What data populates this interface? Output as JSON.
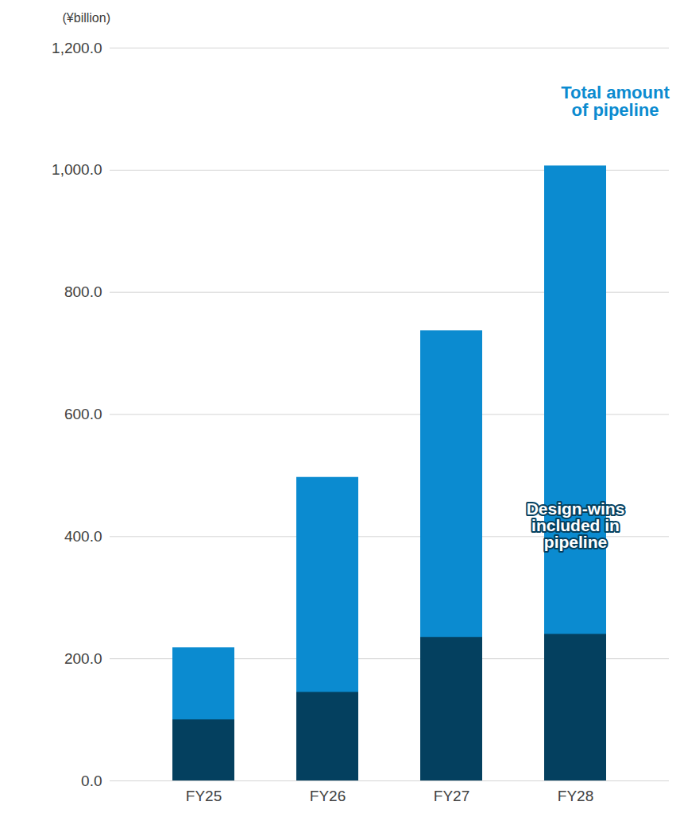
{
  "chart_data": {
    "type": "bar",
    "y_label": "(¥billion)",
    "categories": [
      "FY25",
      "FY26",
      "FY27",
      "FY28"
    ],
    "series": [
      {
        "name": "Total amount of pipeline",
        "color": "#0b8bd0",
        "values": [
          218,
          497,
          737,
          1007
        ]
      },
      {
        "name": "Design-wins included in pipeline",
        "color": "#04405f",
        "values": [
          100,
          145,
          235,
          240
        ]
      }
    ],
    "stacked": false,
    "ylim": [
      0,
      1200
    ],
    "yticks": [
      {
        "value": 0,
        "label": "0.0"
      },
      {
        "value": 200,
        "label": "200.0"
      },
      {
        "value": 400,
        "label": "400.0"
      },
      {
        "value": 600,
        "label": "600.0"
      },
      {
        "value": 800,
        "label": "800.0"
      },
      {
        "value": 1000,
        "label": "1,000.0"
      },
      {
        "value": 1200,
        "label": "1,200.0"
      }
    ],
    "grid": true
  }
}
